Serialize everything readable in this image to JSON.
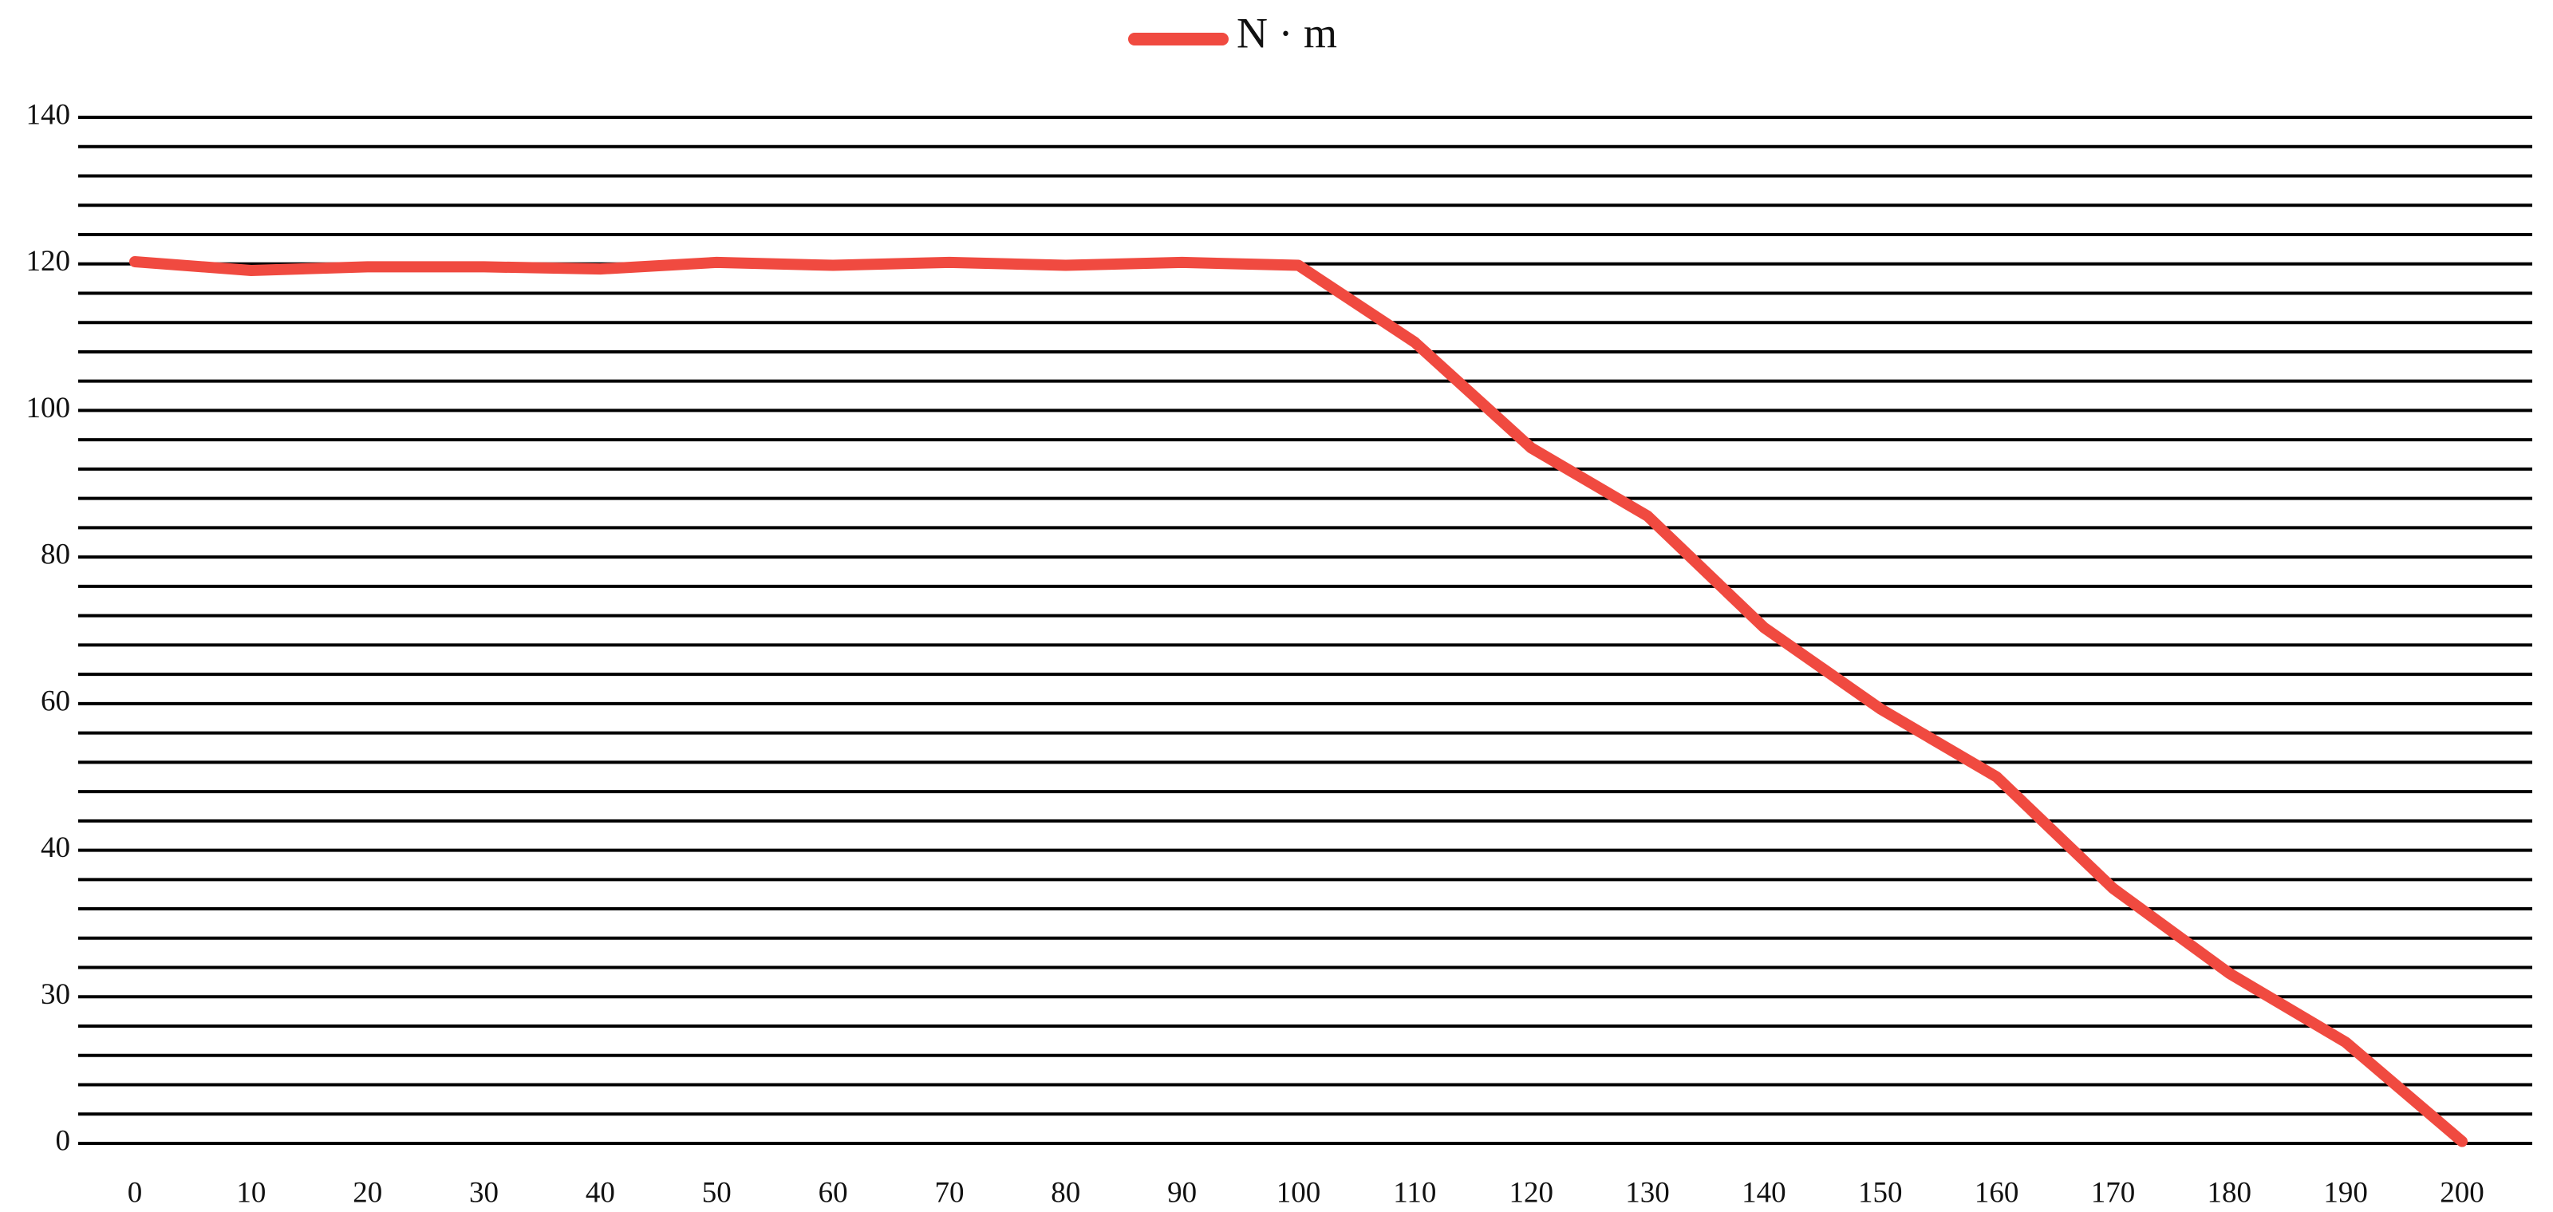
{
  "chart_data": {
    "type": "line",
    "series": [
      {
        "name": "N · m",
        "color": "#f04a40",
        "values": [
          120.3,
          119.1,
          119.6,
          119.6,
          119.3,
          120.2,
          119.8,
          120.2,
          119.8,
          120.2,
          119.8,
          109.3,
          94.9,
          85.6,
          70.4,
          59.3,
          50,
          37.4,
          31.6,
          20.7,
          0.4
        ]
      }
    ],
    "x": [
      0,
      10,
      20,
      30,
      40,
      50,
      60,
      70,
      80,
      90,
      100,
      110,
      120,
      130,
      140,
      150,
      160,
      170,
      180,
      190,
      200
    ],
    "xlim": [
      0,
      200
    ],
    "xticks": [
      0,
      10,
      20,
      30,
      40,
      50,
      60,
      70,
      80,
      90,
      100,
      110,
      120,
      130,
      140,
      150,
      160,
      170,
      180,
      190,
      200
    ],
    "ylim": [
      0,
      140
    ],
    "yticks": [
      0,
      30,
      40,
      60,
      80,
      100,
      120,
      140
    ],
    "grid": true,
    "minor_grid": 5,
    "legend": "top"
  }
}
